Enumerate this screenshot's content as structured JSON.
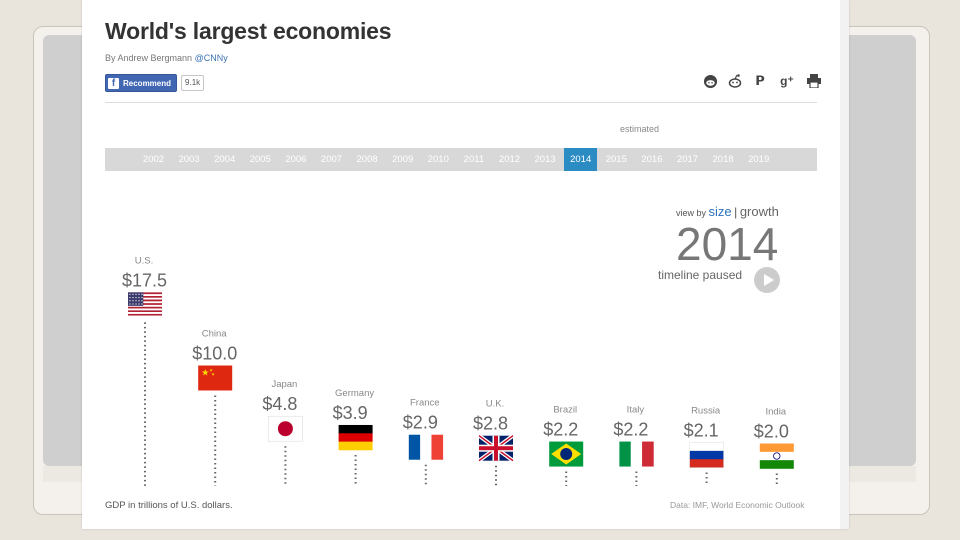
{
  "header": {
    "title": "World's largest economies",
    "byline_prefix": "By Andrew Bergmann",
    "byline_handle": "@CNNy",
    "fb_label": "Recommend",
    "fb_count": "9.1k"
  },
  "share_icons": [
    "reddit-alien-icon",
    "reddit-icon",
    "pinterest-icon",
    "google-plus-icon",
    "print-icon"
  ],
  "timeline": {
    "estimated_label": "estimated",
    "years": [
      "2002",
      "2003",
      "2004",
      "2005",
      "2006",
      "2007",
      "2008",
      "2009",
      "2010",
      "2011",
      "2012",
      "2013",
      "2014",
      "2015",
      "2016",
      "2017",
      "2018",
      "2019"
    ],
    "active_year": "2014"
  },
  "view_by": {
    "prefix": "view by",
    "size": "size",
    "separator": "|",
    "growth": "growth"
  },
  "current_year": "2014",
  "status": "timeline paused",
  "footer": {
    "note": "GDP in trillions of U.S. dollars.",
    "source": "Data: IMF, World Economic Outlook"
  },
  "colors": {
    "accent": "#2b8cc4",
    "timeline_bg": "#d8d8d8",
    "value_text": "#666666",
    "label_text": "#888888"
  },
  "chart_data": {
    "type": "bar",
    "categories": [
      "U.S.",
      "China",
      "Japan",
      "Germany",
      "France",
      "U.K.",
      "Brazil",
      "Italy",
      "Russia",
      "India"
    ],
    "values": [
      17.5,
      10.0,
      4.8,
      3.9,
      2.9,
      2.8,
      2.2,
      2.2,
      2.1,
      2.0
    ],
    "value_labels": [
      "$17.5",
      "$10.0",
      "$4.8",
      "$3.9",
      "$2.9",
      "$2.8",
      "$2.2",
      "$2.2",
      "$2.1",
      "$2.0"
    ],
    "flags": [
      "usa",
      "china",
      "japan",
      "germany",
      "france",
      "uk",
      "brazil",
      "italy",
      "russia",
      "india"
    ],
    "title": "",
    "xlabel": "",
    "ylabel": "GDP in trillions of U.S. dollars."
  }
}
